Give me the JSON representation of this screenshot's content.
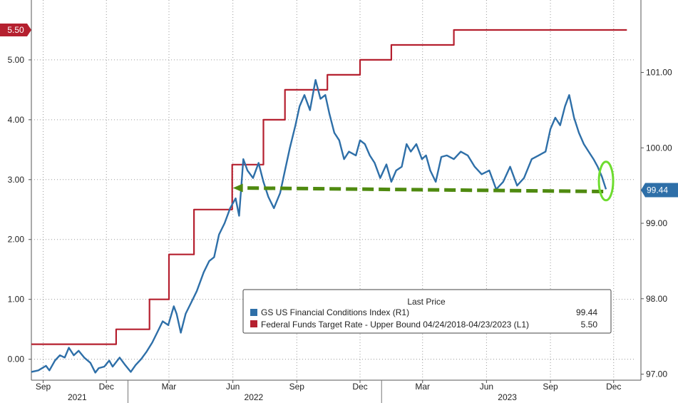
{
  "chart_data": {
    "type": "line",
    "grid": true,
    "legend_position": "bottom-right",
    "legend": {
      "header": "Last Price",
      "entries": [
        {
          "label": "GS US Financial Conditions Index  (R1)",
          "value": "99.44",
          "color": "#2e6fa8"
        },
        {
          "label": "Federal Funds Target Rate - Upper Bound 04/24/2018-04/23/2023   (L1)",
          "value": "5.50",
          "color": "#b5202f"
        }
      ]
    },
    "left_axis": {
      "range": [
        -0.35,
        6.0
      ],
      "ticks": [
        "0.00",
        "1.00",
        "2.00",
        "3.00",
        "4.00",
        "5.00"
      ],
      "last_value_tag": "5.50",
      "tag_value": 5.5,
      "tag_color": "#b5202f"
    },
    "right_axis": {
      "range": [
        96.92,
        101.96
      ],
      "ticks": [
        "97.00",
        "98.00",
        "99.00",
        "100.00",
        "101.00"
      ],
      "last_value_tag": "99.44",
      "tag_value": 99.44,
      "tag_color": "#2e6fa8"
    },
    "x_axis": {
      "range": [
        "2021-08-15",
        "2023-12-31"
      ],
      "month_ticks": [
        {
          "label": "Sep",
          "date": "2021-09-01"
        },
        {
          "label": "Dec",
          "date": "2021-12-01"
        },
        {
          "label": "Mar",
          "date": "2022-03-01"
        },
        {
          "label": "Jun",
          "date": "2022-06-01"
        },
        {
          "label": "Sep",
          "date": "2022-09-01"
        },
        {
          "label": "Dec",
          "date": "2022-12-01"
        },
        {
          "label": "Mar",
          "date": "2023-03-01"
        },
        {
          "label": "Jun",
          "date": "2023-06-01"
        },
        {
          "label": "Sep",
          "date": "2023-09-01"
        },
        {
          "label": "Dec",
          "date": "2023-12-01"
        }
      ],
      "year_labels": [
        {
          "label": "2021",
          "date": "2021-10-20"
        },
        {
          "label": "2022",
          "date": "2022-07-01"
        },
        {
          "label": "2023",
          "date": "2023-07-01"
        }
      ],
      "year_separators": [
        "2022-01-01",
        "2023-01-01"
      ]
    },
    "series": [
      {
        "name": "Federal Funds Target Rate - Upper Bound 04/24/2018-04/23/2023",
        "axis": "left",
        "color": "#b5202f",
        "shape": "step",
        "points": [
          [
            "2021-08-15",
            0.25
          ],
          [
            "2021-12-15",
            0.25
          ],
          [
            "2021-12-15",
            0.5
          ],
          [
            "2022-02-01",
            0.5
          ],
          [
            "2022-02-01",
            1.0
          ],
          [
            "2022-03-01",
            1.0
          ],
          [
            "2022-03-01",
            1.75
          ],
          [
            "2022-04-06",
            1.75
          ],
          [
            "2022-04-06",
            2.5
          ],
          [
            "2022-05-31",
            2.5
          ],
          [
            "2022-05-31",
            3.25
          ],
          [
            "2022-07-15",
            3.25
          ],
          [
            "2022-07-15",
            4.0
          ],
          [
            "2022-08-15",
            4.0
          ],
          [
            "2022-08-15",
            4.5
          ],
          [
            "2022-10-15",
            4.5
          ],
          [
            "2022-10-15",
            4.75
          ],
          [
            "2022-12-01",
            4.75
          ],
          [
            "2022-12-01",
            5.0
          ],
          [
            "2023-01-15",
            5.0
          ],
          [
            "2023-01-15",
            5.25
          ],
          [
            "2023-04-15",
            5.25
          ],
          [
            "2023-04-15",
            5.5
          ],
          [
            "2023-12-20",
            5.5
          ]
        ]
      },
      {
        "name": "GS US Financial Conditions Index",
        "axis": "right",
        "color": "#2e6fa8",
        "shape": "line",
        "points": [
          [
            "2021-08-15",
            97.03
          ],
          [
            "2021-08-25",
            97.05
          ],
          [
            "2021-09-05",
            97.11
          ],
          [
            "2021-09-10",
            97.05
          ],
          [
            "2021-09-18",
            97.18
          ],
          [
            "2021-09-25",
            97.25
          ],
          [
            "2021-10-02",
            97.22
          ],
          [
            "2021-10-08",
            97.35
          ],
          [
            "2021-10-15",
            97.25
          ],
          [
            "2021-10-22",
            97.31
          ],
          [
            "2021-10-30",
            97.22
          ],
          [
            "2021-11-08",
            97.15
          ],
          [
            "2021-11-15",
            97.02
          ],
          [
            "2021-11-20",
            97.08
          ],
          [
            "2021-11-28",
            97.1
          ],
          [
            "2021-12-05",
            97.18
          ],
          [
            "2021-12-10",
            97.1
          ],
          [
            "2021-12-20",
            97.22
          ],
          [
            "2021-12-28",
            97.12
          ],
          [
            "2022-01-05",
            97.03
          ],
          [
            "2022-01-12",
            97.12
          ],
          [
            "2022-01-20",
            97.2
          ],
          [
            "2022-01-28",
            97.3
          ],
          [
            "2022-02-05",
            97.42
          ],
          [
            "2022-02-12",
            97.55
          ],
          [
            "2022-02-20",
            97.7
          ],
          [
            "2022-02-28",
            97.65
          ],
          [
            "2022-03-08",
            97.9
          ],
          [
            "2022-03-12",
            97.8
          ],
          [
            "2022-03-18",
            97.55
          ],
          [
            "2022-03-25",
            97.8
          ],
          [
            "2022-04-02",
            97.95
          ],
          [
            "2022-04-10",
            98.1
          ],
          [
            "2022-04-20",
            98.35
          ],
          [
            "2022-04-28",
            98.5
          ],
          [
            "2022-05-05",
            98.55
          ],
          [
            "2022-05-12",
            98.85
          ],
          [
            "2022-05-20",
            99.0
          ],
          [
            "2022-05-28",
            99.2
          ],
          [
            "2022-06-05",
            99.33
          ],
          [
            "2022-06-10",
            99.1
          ],
          [
            "2022-06-16",
            99.85
          ],
          [
            "2022-06-22",
            99.7
          ],
          [
            "2022-06-30",
            99.6
          ],
          [
            "2022-07-08",
            99.8
          ],
          [
            "2022-07-15",
            99.55
          ],
          [
            "2022-07-22",
            99.35
          ],
          [
            "2022-07-30",
            99.2
          ],
          [
            "2022-08-08",
            99.4
          ],
          [
            "2022-08-15",
            99.7
          ],
          [
            "2022-08-22",
            100.0
          ],
          [
            "2022-08-30",
            100.3
          ],
          [
            "2022-09-05",
            100.55
          ],
          [
            "2022-09-12",
            100.7
          ],
          [
            "2022-09-20",
            100.5
          ],
          [
            "2022-09-28",
            100.9
          ],
          [
            "2022-10-05",
            100.65
          ],
          [
            "2022-10-12",
            100.7
          ],
          [
            "2022-10-18",
            100.45
          ],
          [
            "2022-10-25",
            100.2
          ],
          [
            "2022-11-01",
            100.1
          ],
          [
            "2022-11-08",
            99.85
          ],
          [
            "2022-11-15",
            99.95
          ],
          [
            "2022-11-25",
            99.9
          ],
          [
            "2022-12-01",
            100.1
          ],
          [
            "2022-12-08",
            100.05
          ],
          [
            "2022-12-15",
            99.9
          ],
          [
            "2022-12-22",
            99.8
          ],
          [
            "2022-12-30",
            99.6
          ],
          [
            "2023-01-08",
            99.78
          ],
          [
            "2023-01-15",
            99.55
          ],
          [
            "2023-01-22",
            99.7
          ],
          [
            "2023-01-30",
            99.75
          ],
          [
            "2023-02-06",
            100.05
          ],
          [
            "2023-02-12",
            99.95
          ],
          [
            "2023-02-20",
            100.05
          ],
          [
            "2023-02-28",
            99.85
          ],
          [
            "2023-03-06",
            99.9
          ],
          [
            "2023-03-12",
            99.7
          ],
          [
            "2023-03-20",
            99.55
          ],
          [
            "2023-03-28",
            99.88
          ],
          [
            "2023-04-05",
            99.9
          ],
          [
            "2023-04-15",
            99.85
          ],
          [
            "2023-04-25",
            99.95
          ],
          [
            "2023-05-05",
            99.9
          ],
          [
            "2023-05-15",
            99.75
          ],
          [
            "2023-05-25",
            99.65
          ],
          [
            "2023-06-05",
            99.7
          ],
          [
            "2023-06-15",
            99.45
          ],
          [
            "2023-06-25",
            99.55
          ],
          [
            "2023-07-05",
            99.75
          ],
          [
            "2023-07-15",
            99.5
          ],
          [
            "2023-07-25",
            99.6
          ],
          [
            "2023-08-05",
            99.85
          ],
          [
            "2023-08-15",
            99.9
          ],
          [
            "2023-08-25",
            99.95
          ],
          [
            "2023-09-01",
            100.25
          ],
          [
            "2023-09-08",
            100.4
          ],
          [
            "2023-09-15",
            100.3
          ],
          [
            "2023-09-22",
            100.55
          ],
          [
            "2023-09-28",
            100.7
          ],
          [
            "2023-10-05",
            100.4
          ],
          [
            "2023-10-12",
            100.2
          ],
          [
            "2023-10-19",
            100.05
          ],
          [
            "2023-10-26",
            99.95
          ],
          [
            "2023-11-02",
            99.85
          ],
          [
            "2023-11-08",
            99.75
          ],
          [
            "2023-11-14",
            99.62
          ],
          [
            "2023-11-20",
            99.45
          ]
        ]
      }
    ],
    "annotations": [
      {
        "type": "dashed-arrow",
        "color": "#4f8a10",
        "from": [
          "2023-11-16",
          99.44
        ],
        "to": [
          "2022-06-01",
          99.44
        ],
        "axis": "right"
      },
      {
        "type": "ellipse",
        "color": "#6edc2f",
        "center": [
          "2023-11-20",
          99.56
        ],
        "axis": "right"
      }
    ]
  }
}
